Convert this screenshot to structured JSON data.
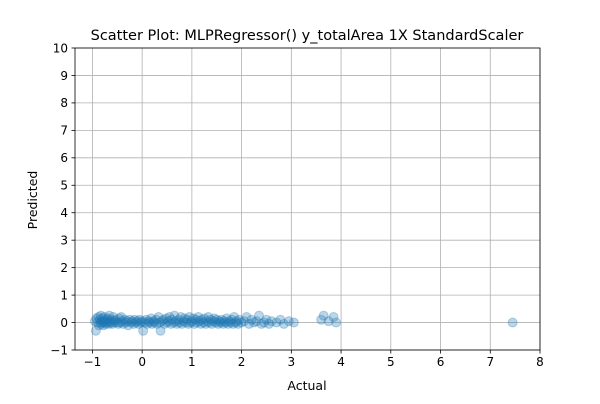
{
  "chart_data": {
    "type": "scatter",
    "title": "Scatter Plot: MLPRegressor() y_totalArea 1X StandardScaler",
    "xlabel": "Actual",
    "ylabel": "Predicted",
    "xlim": [
      -1.35,
      8
    ],
    "ylim": [
      -1,
      10
    ],
    "xticks": [
      "−1",
      "0",
      "1",
      "2",
      "3",
      "4",
      "5",
      "6",
      "7",
      "8"
    ],
    "yticks": [
      "−1",
      "0",
      "1",
      "2",
      "3",
      "4",
      "5",
      "6",
      "7",
      "8",
      "9",
      "10"
    ],
    "grid": true,
    "marker_color": "#1f77b4",
    "marker_alpha": 0.3,
    "series": [
      {
        "points": [
          [
            -0.95,
            0.05
          ],
          [
            -0.93,
            -0.3
          ],
          [
            -0.92,
            0.15
          ],
          [
            -0.9,
            0.0
          ],
          [
            -0.88,
            0.2
          ],
          [
            -0.87,
            -0.1
          ],
          [
            -0.85,
            0.1
          ],
          [
            -0.84,
            0.0
          ],
          [
            -0.83,
            0.25
          ],
          [
            -0.82,
            -0.05
          ],
          [
            -0.8,
            0.05
          ],
          [
            -0.79,
            0.15
          ],
          [
            -0.78,
            -0.1
          ],
          [
            -0.77,
            0.0
          ],
          [
            -0.76,
            0.2
          ],
          [
            -0.75,
            0.05
          ],
          [
            -0.73,
            -0.05
          ],
          [
            -0.72,
            0.1
          ],
          [
            -0.7,
            0.0
          ],
          [
            -0.69,
            0.15
          ],
          [
            -0.67,
            -0.05
          ],
          [
            -0.66,
            0.25
          ],
          [
            -0.65,
            0.05
          ],
          [
            -0.63,
            0.0
          ],
          [
            -0.62,
            0.1
          ],
          [
            -0.6,
            -0.05
          ],
          [
            -0.58,
            0.2
          ],
          [
            -0.57,
            0.0
          ],
          [
            -0.55,
            0.05
          ],
          [
            -0.53,
            0.1
          ],
          [
            -0.5,
            0.0
          ],
          [
            -0.48,
            -0.05
          ],
          [
            -0.46,
            0.15
          ],
          [
            -0.44,
            0.0
          ],
          [
            -0.42,
            0.2
          ],
          [
            -0.4,
            0.05
          ],
          [
            -0.38,
            -0.05
          ],
          [
            -0.35,
            0.1
          ],
          [
            -0.33,
            0.0
          ],
          [
            -0.3,
            0.05
          ],
          [
            -0.28,
            -0.1
          ],
          [
            -0.25,
            0.1
          ],
          [
            -0.22,
            0.0
          ],
          [
            -0.2,
            0.05
          ],
          [
            -0.17,
            -0.05
          ],
          [
            -0.15,
            0.1
          ],
          [
            -0.12,
            0.0
          ],
          [
            -0.1,
            0.05
          ],
          [
            -0.07,
            -0.05
          ],
          [
            -0.05,
            0.1
          ],
          [
            -0.02,
            0.0
          ],
          [
            0.0,
            0.05
          ],
          [
            0.02,
            -0.3
          ],
          [
            0.05,
            0.0
          ],
          [
            0.08,
            0.1
          ],
          [
            0.1,
            -0.05
          ],
          [
            0.13,
            0.05
          ],
          [
            0.15,
            0.0
          ],
          [
            0.18,
            0.15
          ],
          [
            0.2,
            -0.05
          ],
          [
            0.23,
            0.05
          ],
          [
            0.25,
            0.0
          ],
          [
            0.28,
            0.1
          ],
          [
            0.3,
            -0.05
          ],
          [
            0.33,
            0.2
          ],
          [
            0.35,
            0.0
          ],
          [
            0.37,
            -0.3
          ],
          [
            0.4,
            0.05
          ],
          [
            0.43,
            0.1
          ],
          [
            0.45,
            -0.05
          ],
          [
            0.48,
            0.15
          ],
          [
            0.5,
            0.0
          ],
          [
            0.53,
            0.05
          ],
          [
            0.55,
            0.2
          ],
          [
            0.58,
            -0.05
          ],
          [
            0.6,
            0.1
          ],
          [
            0.63,
            0.0
          ],
          [
            0.65,
            0.25
          ],
          [
            0.68,
            0.05
          ],
          [
            0.7,
            -0.05
          ],
          [
            0.73,
            0.1
          ],
          [
            0.75,
            0.0
          ],
          [
            0.78,
            0.2
          ],
          [
            0.8,
            -0.05
          ],
          [
            0.83,
            0.05
          ],
          [
            0.85,
            0.15
          ],
          [
            0.88,
            0.0
          ],
          [
            0.9,
            0.1
          ],
          [
            0.93,
            -0.05
          ],
          [
            0.95,
            0.2
          ],
          [
            0.98,
            0.0
          ],
          [
            1.0,
            0.05
          ],
          [
            1.03,
            0.15
          ],
          [
            1.05,
            -0.05
          ],
          [
            1.08,
            0.1
          ],
          [
            1.1,
            0.0
          ],
          [
            1.13,
            0.2
          ],
          [
            1.15,
            0.05
          ],
          [
            1.18,
            -0.05
          ],
          [
            1.2,
            0.1
          ],
          [
            1.23,
            0.0
          ],
          [
            1.25,
            0.15
          ],
          [
            1.28,
            -0.05
          ],
          [
            1.3,
            0.05
          ],
          [
            1.33,
            0.2
          ],
          [
            1.35,
            0.0
          ],
          [
            1.38,
            0.1
          ],
          [
            1.4,
            -0.05
          ],
          [
            1.43,
            0.05
          ],
          [
            1.45,
            0.15
          ],
          [
            1.48,
            0.0
          ],
          [
            1.5,
            0.1
          ],
          [
            1.53,
            -0.05
          ],
          [
            1.55,
            0.05
          ],
          [
            1.58,
            0.0
          ],
          [
            1.6,
            0.1
          ],
          [
            1.63,
            -0.05
          ],
          [
            1.65,
            0.05
          ],
          [
            1.68,
            0.0
          ],
          [
            1.7,
            0.15
          ],
          [
            1.73,
            -0.05
          ],
          [
            1.75,
            0.05
          ],
          [
            1.78,
            0.0
          ],
          [
            1.8,
            0.1
          ],
          [
            1.83,
            -0.05
          ],
          [
            1.85,
            0.2
          ],
          [
            1.88,
            0.0
          ],
          [
            1.9,
            0.05
          ],
          [
            1.93,
            -0.05
          ],
          [
            1.95,
            0.1
          ],
          [
            2.0,
            0.0
          ],
          [
            2.05,
            0.05
          ],
          [
            2.1,
            0.2
          ],
          [
            2.15,
            -0.05
          ],
          [
            2.2,
            0.1
          ],
          [
            2.25,
            0.0
          ],
          [
            2.3,
            0.05
          ],
          [
            2.35,
            0.25
          ],
          [
            2.4,
            -0.05
          ],
          [
            2.45,
            0.0
          ],
          [
            2.5,
            0.1
          ],
          [
            2.55,
            -0.05
          ],
          [
            2.6,
            0.05
          ],
          [
            2.7,
            0.0
          ],
          [
            2.78,
            0.1
          ],
          [
            2.85,
            -0.05
          ],
          [
            2.95,
            0.05
          ],
          [
            3.05,
            0.0
          ],
          [
            3.6,
            0.1
          ],
          [
            3.65,
            0.25
          ],
          [
            3.75,
            0.05
          ],
          [
            3.85,
            0.2
          ],
          [
            3.9,
            0.0
          ],
          [
            7.45,
            0.0
          ]
        ]
      }
    ]
  }
}
